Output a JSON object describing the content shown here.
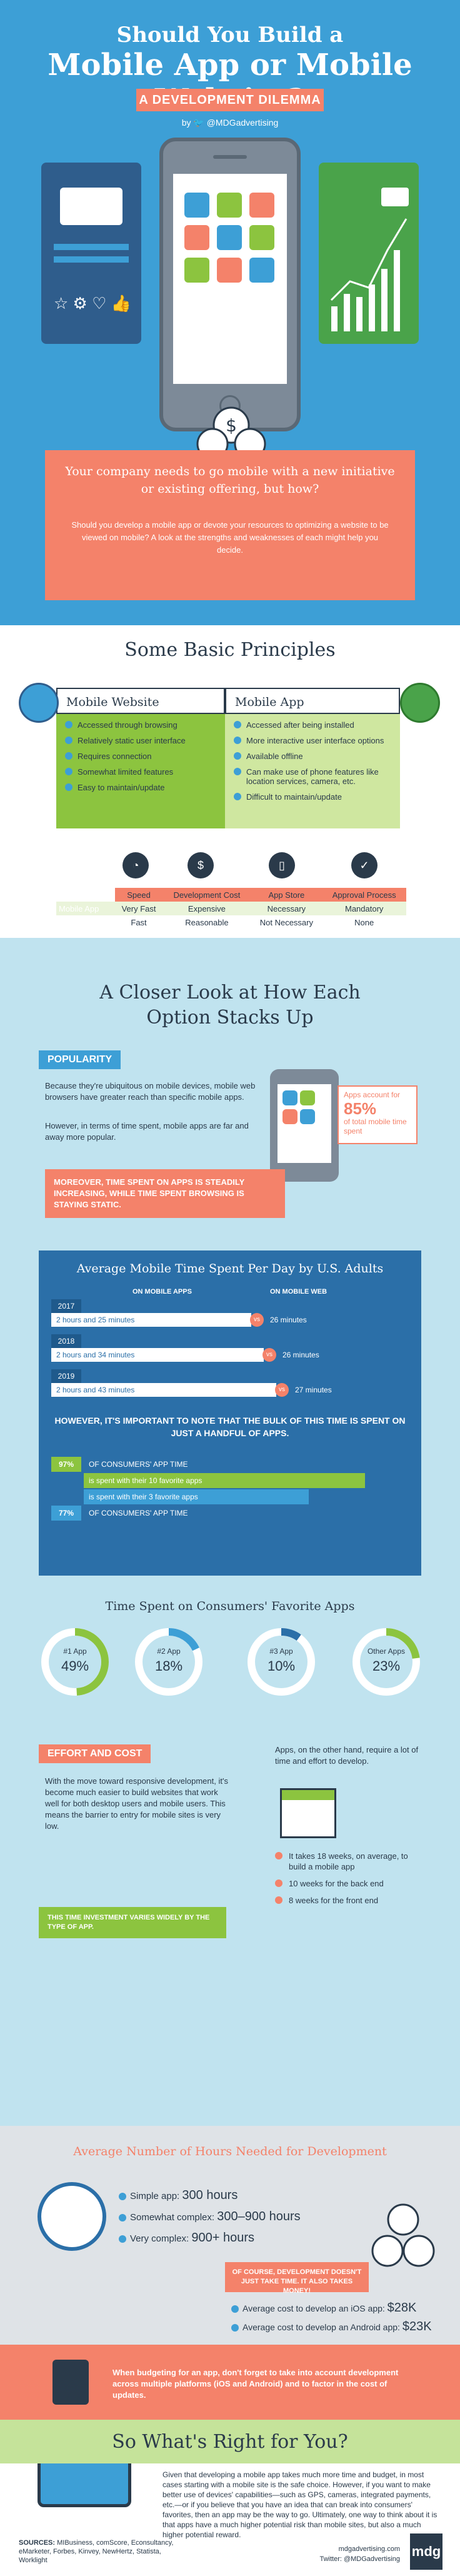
{
  "hero": {
    "title_line1": "Should You Build a",
    "title_line2": "Mobile App or Mobile Website?",
    "banner": "A DEVELOPMENT DILEMMA",
    "byline": "by 🐦 @MDGadvertising",
    "question": "Your company needs to go mobile with a new initiative or existing offering, but how?",
    "intro": "Should you develop a mobile app or devote your resources to optimizing a website to be viewed on mobile? A look at the strengths and weaknesses of each might help you decide."
  },
  "principles": {
    "title": "Some Basic Principles",
    "website": {
      "heading": "Mobile Website",
      "items": [
        "Accessed through browsing",
        "Relatively static user interface",
        "Requires connection",
        "Somewhat limited features",
        "Easy to maintain/update"
      ]
    },
    "app": {
      "heading": "Mobile App",
      "items": [
        "Accessed after being installed",
        "More interactive user interface options",
        "Available offline",
        "Can make use of phone features like location services, camera, etc.",
        "Difficult to maintain/update"
      ]
    },
    "table": {
      "headers": [
        "",
        "Speed",
        "Development Cost",
        "App Store",
        "Approval Process"
      ],
      "rows": [
        [
          "Mobile App",
          "Very Fast",
          "Expensive",
          "Necessary",
          "Mandatory"
        ],
        [
          "Mobile Web",
          "Fast",
          "Reasonable",
          "Not Necessary",
          "None"
        ]
      ]
    }
  },
  "closer": {
    "title_line1": "A Closer Look at How Each",
    "title_line2": "Option Stacks Up",
    "popularity": {
      "tag": "POPULARITY",
      "p1": "Because they're ubiquitous on mobile devices, mobile web browsers have greater reach than specific mobile apps.",
      "p2": "However, in terms of time spent, mobile apps are far and away more popular.",
      "callout_pre": "Apps account for",
      "callout_value": "85%",
      "callout_post": "of total mobile time spent",
      "moreover": "MOREOVER, TIME SPENT ON APPS IS STEADILY INCREASING, WHILE TIME SPENT BROWSING IS STAYING STATIC."
    },
    "avg": {
      "title": "Average Mobile Time Spent Per Day by U.S. Adults",
      "legend_app": "ON MOBILE APPS",
      "legend_web": "ON MOBILE WEB",
      "vs": "vs",
      "years": [
        {
          "year": "2017",
          "app": "2 hours and 25 minutes",
          "web": "26 minutes"
        },
        {
          "year": "2018",
          "app": "2 hours and 34 minutes",
          "web": "26 minutes"
        },
        {
          "year": "2019",
          "app": "2 hours and 43 minutes",
          "web": "27 minutes"
        }
      ],
      "however": "HOWEVER, IT'S IMPORTANT TO NOTE THAT THE BULK OF THIS TIME IS SPENT ON JUST A HANDFUL OF APPS.",
      "stats": [
        {
          "pct": "97%",
          "text": "OF CONSUMERS' APP TIME"
        },
        {
          "pct": "",
          "text": "is spent with their 10 favorite apps"
        },
        {
          "pct": "",
          "text": "is spent with their 3 favorite apps"
        },
        {
          "pct": "77%",
          "text": "OF CONSUMERS' APP TIME"
        }
      ]
    },
    "favorites": {
      "title": "Time Spent on Consumers' Favorite Apps",
      "items": [
        {
          "label": "#1 App",
          "value": "49%",
          "fraction": 0.49,
          "color": "#8cc43f"
        },
        {
          "label": "#2 App",
          "value": "18%",
          "fraction": 0.18,
          "color": "#3d9fd6"
        },
        {
          "label": "#3 App",
          "value": "10%",
          "fraction": 0.1,
          "color": "#2b6fa8"
        },
        {
          "label": "Other Apps",
          "value": "23%",
          "fraction": 0.23,
          "color": "#8cc43f"
        }
      ]
    },
    "effort": {
      "tag": "EFFORT AND COST",
      "left": "With the move toward responsive development, it's become much easier to build websites that work well for both desktop users and mobile users. This means the barrier to entry for mobile sites is very low.",
      "right": "Apps, on the other hand, require a lot of time and effort to develop.",
      "note": "THIS TIME INVESTMENT VARIES WIDELY BY THE TYPE OF APP.",
      "bullets": [
        "It takes 18 weeks, on average, to build a mobile app",
        "10 weeks for the back end",
        "8 weeks for the front end"
      ]
    }
  },
  "hours": {
    "title": "Average Number of Hours Needed for Development",
    "items": [
      {
        "label": "Simple app:",
        "value": "300 hours"
      },
      {
        "label": "Somewhat complex:",
        "value": "300–900 hours"
      },
      {
        "label": "Very complex:",
        "value": "900+ hours"
      }
    ],
    "callout": "OF COURSE, DEVELOPMENT DOESN'T JUST TAKE TIME. IT ALSO TAKES MONEY!",
    "costs": [
      {
        "label": "Average cost to develop an iOS app:",
        "value": "$28K"
      },
      {
        "label": "Average cost to develop an Android app:",
        "value": "$23K"
      }
    ]
  },
  "budget": {
    "text": "When budgeting for an app, don't forget to take into account development across multiple platforms (iOS and Android) and to factor in the cost of updates."
  },
  "right": {
    "title": "So What's Right for You?",
    "text": "Given that developing a mobile app takes much more time and budget, in most cases starting with a mobile site is the safe choice. However, if you want to make better use of devices' capabilities—such as GPS, cameras, integrated payments, etc.—or if you believe that you have an idea that can break into consumers' favorites, then an app may be the way to go. Ultimately, one way to think about it is that apps have a much higher potential risk than mobile sites, but also a much higher potential reward."
  },
  "footer": {
    "sources_label": "SOURCES:",
    "sources": "MIBusiness, comScore, Econsultancy, eMarketer, Forbes, Kinvey, NewHertz, Statista, Worklight",
    "site": "mdgadvertising.com",
    "twitter": "Twitter: @MDGadvertising",
    "logo": "mdg"
  }
}
